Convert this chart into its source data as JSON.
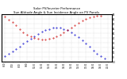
{
  "title": "Solar PV/Inverter Performance\nSun Altitude Angle & Sun Incidence Angle on PV Panels",
  "title_fontsize": 2.8,
  "tick_fontsize": 1.8,
  "background_color": "#ffffff",
  "grid_color": "#bbbbbb",
  "x_labels": [
    "6:00",
    "7:00",
    "8:00",
    "9:00",
    "10:00",
    "11:00",
    "12:00",
    "13:00",
    "14:00",
    "15:00",
    "16:00",
    "17:00",
    "18:00",
    "19:00",
    "20:00"
  ],
  "x_values": [
    6,
    7,
    8,
    9,
    10,
    11,
    12,
    13,
    14,
    15,
    16,
    17,
    18,
    19,
    20
  ],
  "xlim": [
    5.5,
    20.5
  ],
  "ylim": [
    -10,
    90
  ],
  "y_ticks": [
    -10,
    0,
    10,
    20,
    30,
    40,
    50,
    60,
    70,
    80,
    90
  ],
  "sun_altitude": {
    "x": [
      6.0,
      6.5,
      7.0,
      7.5,
      8.0,
      8.5,
      9.0,
      9.5,
      10.0,
      10.5,
      11.0,
      11.5,
      12.0,
      12.5,
      13.0,
      13.5,
      14.0,
      14.5,
      15.0,
      15.5,
      16.0,
      16.5,
      17.0,
      17.5,
      18.0,
      18.5,
      19.0,
      19.5
    ],
    "y": [
      2,
      6,
      11,
      16,
      22,
      28,
      34,
      39,
      44,
      49,
      53,
      57,
      59,
      61,
      62,
      61,
      59,
      56,
      52,
      47,
      41,
      35,
      28,
      21,
      14,
      7,
      1,
      -4
    ],
    "color": "#0000cc",
    "marker": ".",
    "label": "Sun Altitude Angle"
  },
  "sun_incidence": {
    "x": [
      6.0,
      6.5,
      7.0,
      7.5,
      8.0,
      8.5,
      9.0,
      9.5,
      10.0,
      10.5,
      11.0,
      11.5,
      12.0,
      12.5,
      13.0,
      13.5,
      14.0,
      14.5,
      15.0,
      15.5,
      16.0,
      16.5,
      17.0,
      17.5,
      18.0,
      18.5,
      19.0
    ],
    "y": [
      85,
      79,
      73,
      66,
      59,
      52,
      47,
      43,
      40,
      38,
      37,
      37,
      38,
      40,
      43,
      47,
      52,
      57,
      62,
      67,
      72,
      76,
      80,
      83,
      85,
      86,
      87
    ],
    "color": "#cc0000",
    "marker": ".",
    "label": "Sun Incidence Angle on PV Panels"
  }
}
